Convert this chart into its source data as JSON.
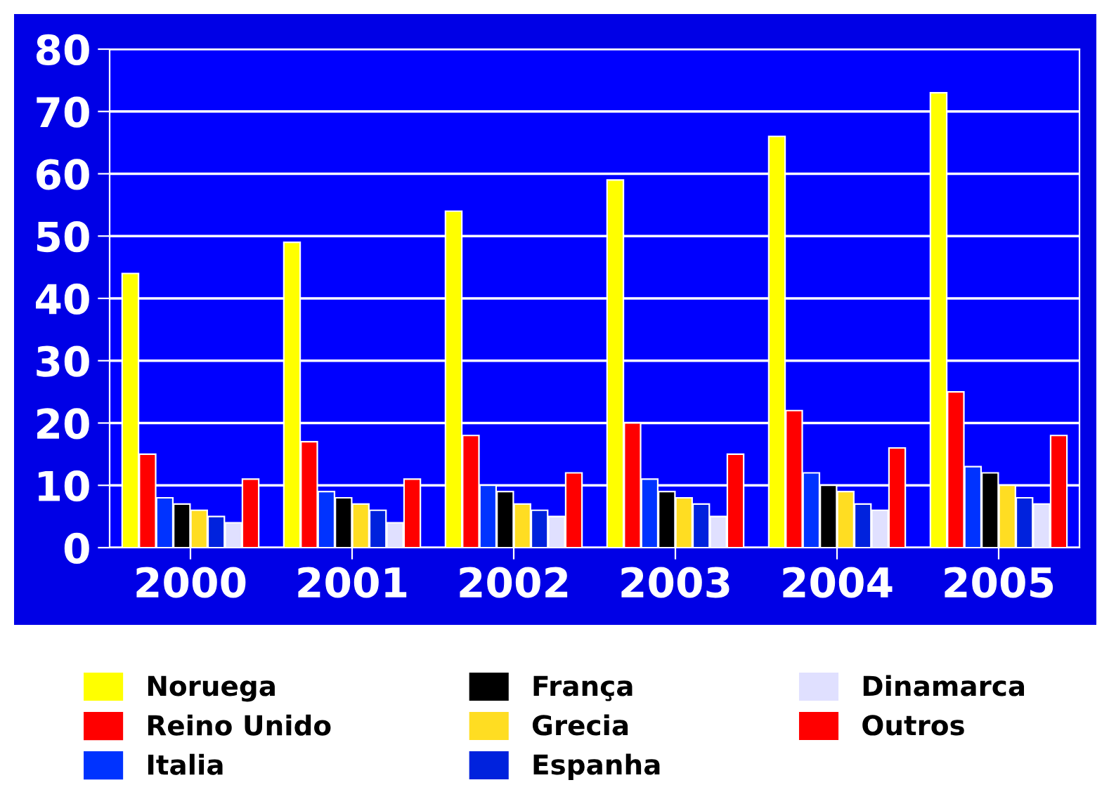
{
  "chart_data": {
    "type": "bar",
    "categories": [
      "2000",
      "2001",
      "2002",
      "2003",
      "2004",
      "2005"
    ],
    "series": [
      {
        "name": "Noruega",
        "color": "#ffff00",
        "values": [
          44,
          49,
          54,
          59,
          66,
          73
        ]
      },
      {
        "name": "Reino Unido",
        "color": "#ff0000",
        "values": [
          15,
          17,
          18,
          20,
          22,
          25
        ]
      },
      {
        "name": "Italia",
        "color": "#0033ff",
        "values": [
          8,
          9,
          10,
          11,
          12,
          13
        ]
      },
      {
        "name": "França",
        "color": "#000000",
        "values": [
          7,
          8,
          9,
          9,
          10,
          12
        ]
      },
      {
        "name": "Grecia",
        "color": "#ffdd22",
        "values": [
          6,
          7,
          7,
          8,
          9,
          10
        ]
      },
      {
        "name": "Espanha",
        "color": "#0022dd",
        "values": [
          5,
          6,
          6,
          7,
          7,
          8
        ]
      },
      {
        "name": "Dinamarca",
        "color": "#e0e0ff",
        "values": [
          4,
          4,
          5,
          5,
          6,
          7
        ]
      },
      {
        "name": "Outros",
        "color": "#ff0000",
        "values": [
          11,
          11,
          12,
          15,
          16,
          18
        ]
      }
    ],
    "ylim": [
      0,
      80
    ],
    "yticks": [
      0,
      10,
      20,
      30,
      40,
      50,
      60,
      70,
      80
    ],
    "grid": "y",
    "legend": "bottom"
  }
}
